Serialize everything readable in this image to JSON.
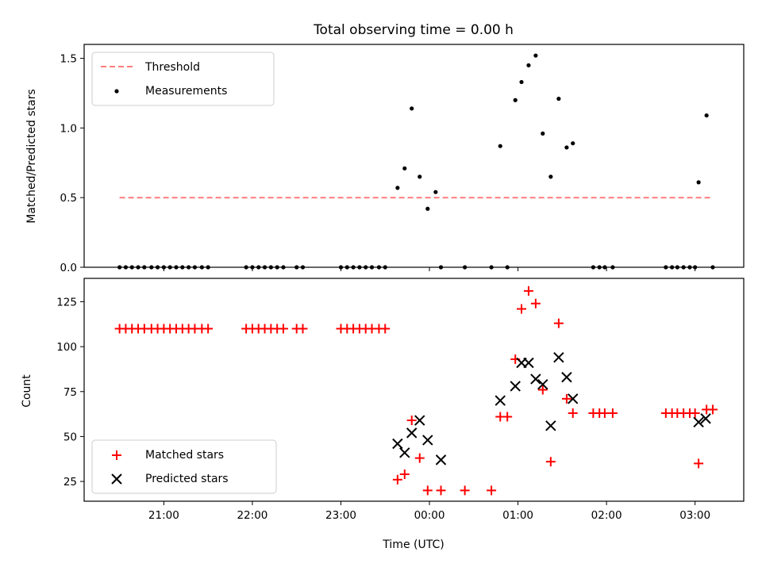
{
  "chart_data": [
    {
      "type": "scatter",
      "title": "Total observing time = 0.00 h",
      "xlabel": "",
      "ylabel": "Matched/Predicted stars",
      "x_units": "hours (UTC), continuing past midnight as 24+",
      "xlim": [
        20.1,
        27.55
      ],
      "ylim": [
        0,
        1.6
      ],
      "yticks": [
        0.0,
        0.5,
        1.0,
        1.5
      ],
      "ytick_labels": [
        "0.0",
        "0.5",
        "1.0",
        "1.5"
      ],
      "grid": false,
      "legend_position": "top-left",
      "legend": [
        "Threshold",
        "Measurements"
      ],
      "series": [
        {
          "name": "Threshold",
          "kind": "line",
          "style": "dashed",
          "color": "#ff7b7b",
          "x": [
            20.5,
            27.2
          ],
          "y": [
            0.5,
            0.5
          ]
        },
        {
          "name": "Measurements",
          "kind": "scatter",
          "marker": "dot",
          "color": "#000000",
          "x": [
            20.5,
            20.57,
            20.64,
            20.71,
            20.78,
            20.86,
            20.93,
            21.0,
            21.07,
            21.14,
            21.21,
            21.28,
            21.35,
            21.43,
            21.5,
            21.93,
            22.0,
            22.07,
            22.14,
            22.21,
            22.28,
            22.35,
            22.5,
            22.57,
            23.0,
            23.07,
            23.14,
            23.21,
            23.28,
            23.35,
            23.43,
            23.5,
            23.64,
            23.72,
            23.8,
            23.89,
            23.98,
            24.07,
            24.13,
            24.4,
            24.7,
            24.8,
            24.88,
            24.97,
            25.04,
            25.12,
            25.2,
            25.28,
            25.37,
            25.46,
            25.55,
            25.62,
            25.85,
            25.92,
            25.98,
            26.07,
            26.67,
            26.74,
            26.8,
            26.87,
            26.94,
            27.0,
            27.04,
            27.13,
            27.2
          ],
          "y": [
            0,
            0,
            0,
            0,
            0,
            0,
            0,
            0,
            0,
            0,
            0,
            0,
            0,
            0,
            0,
            0,
            0,
            0,
            0,
            0,
            0,
            0,
            0,
            0,
            0,
            0,
            0,
            0,
            0,
            0,
            0,
            0,
            0.57,
            0.71,
            1.14,
            0.65,
            0.42,
            0.54,
            0,
            0,
            0,
            0.87,
            0,
            1.2,
            1.33,
            1.45,
            1.52,
            0.96,
            0.65,
            1.21,
            0.86,
            0.89,
            0,
            0,
            0,
            0,
            0,
            0,
            0,
            0,
            0,
            0,
            0.61,
            1.09,
            0
          ]
        }
      ]
    },
    {
      "type": "scatter",
      "title": "",
      "xlabel": "Time (UTC)",
      "ylabel": "Count",
      "x_units": "hours (UTC), continuing past midnight as 24+",
      "xlim": [
        20.1,
        27.55
      ],
      "ylim": [
        14,
        138
      ],
      "yticks": [
        25,
        50,
        75,
        100,
        125
      ],
      "ytick_labels": [
        "25",
        "50",
        "75",
        "100",
        "125"
      ],
      "xticks": [
        21,
        22,
        23,
        24,
        25,
        26,
        27
      ],
      "xtick_labels": [
        "21:00",
        "22:00",
        "23:00",
        "00:00",
        "01:00",
        "02:00",
        "03:00"
      ],
      "grid": false,
      "legend_position": "bottom-left",
      "legend": [
        "Matched stars",
        "Predicted stars"
      ],
      "series": [
        {
          "name": "Matched stars",
          "marker": "plus",
          "color": "#ff0000",
          "x": [
            20.5,
            20.57,
            20.64,
            20.71,
            20.78,
            20.86,
            20.93,
            21.0,
            21.07,
            21.14,
            21.21,
            21.28,
            21.35,
            21.43,
            21.5,
            21.93,
            22.0,
            22.07,
            22.14,
            22.21,
            22.28,
            22.35,
            22.5,
            22.57,
            23.0,
            23.07,
            23.14,
            23.21,
            23.28,
            23.35,
            23.43,
            23.5,
            23.64,
            23.72,
            23.8,
            23.89,
            23.98,
            24.13,
            24.4,
            24.7,
            24.8,
            24.88,
            24.97,
            25.04,
            25.12,
            25.2,
            25.28,
            25.37,
            25.46,
            25.55,
            25.62,
            25.85,
            25.92,
            25.98,
            26.07,
            26.67,
            26.74,
            26.8,
            26.87,
            26.94,
            27.0,
            27.04,
            27.13,
            27.2
          ],
          "y": [
            110,
            110,
            110,
            110,
            110,
            110,
            110,
            110,
            110,
            110,
            110,
            110,
            110,
            110,
            110,
            110,
            110,
            110,
            110,
            110,
            110,
            110,
            110,
            110,
            110,
            110,
            110,
            110,
            110,
            110,
            110,
            110,
            26,
            29,
            59,
            38,
            20,
            20,
            20,
            20,
            61,
            61,
            93,
            121,
            131,
            124,
            76,
            36,
            113,
            71,
            63,
            63,
            63,
            63,
            63,
            63,
            63,
            63,
            63,
            63,
            63,
            35,
            65,
            65
          ]
        },
        {
          "name": "Predicted stars",
          "marker": "x",
          "color": "#000000",
          "x": [
            23.64,
            23.72,
            23.8,
            23.89,
            23.98,
            24.13,
            24.8,
            24.97,
            25.04,
            25.12,
            25.2,
            25.28,
            25.37,
            25.46,
            25.55,
            25.62,
            27.04,
            27.12
          ],
          "y": [
            46,
            41,
            52,
            59,
            48,
            37,
            70,
            78,
            91,
            91,
            82,
            79,
            56,
            94,
            83,
            71,
            58,
            60
          ]
        }
      ]
    }
  ]
}
